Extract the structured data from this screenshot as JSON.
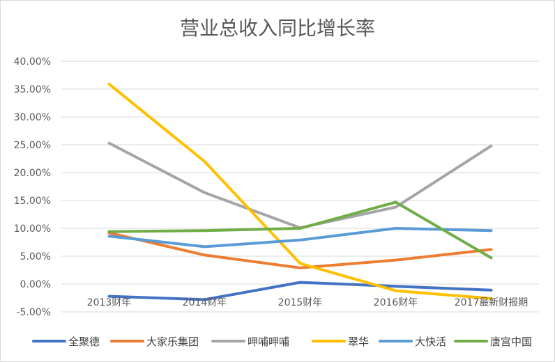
{
  "chart_data": {
    "type": "line",
    "title": "营业总收入同比增长率",
    "categories": [
      "2013财年",
      "2014财年",
      "2015财年",
      "2016财年",
      "2017最新财报期"
    ],
    "y_ticks": [
      "40.00%",
      "35.00%",
      "30.00%",
      "25.00%",
      "20.00%",
      "15.00%",
      "10.00%",
      "5.00%",
      "0.00%",
      "-5.00%"
    ],
    "ylim": [
      -5,
      40
    ],
    "unit": "%",
    "grid": true,
    "legend_position": "bottom",
    "series": [
      {
        "name": "全聚德",
        "color": "#4472C4",
        "values": [
          -2.2,
          -2.8,
          0.3,
          -0.4,
          -1.1
        ]
      },
      {
        "name": "大家乐集团",
        "color": "#ED7D31",
        "values": [
          9.2,
          5.2,
          2.9,
          4.3,
          6.2
        ]
      },
      {
        "name": "呷哺呷哺",
        "color": "#A5A5A5",
        "values": [
          25.3,
          16.4,
          10.1,
          13.8,
          24.8
        ]
      },
      {
        "name": "翠华",
        "color": "#FFC000",
        "values": [
          35.9,
          22.0,
          3.7,
          -1.2,
          -2.6
        ]
      },
      {
        "name": "大快活",
        "color": "#5B9BD5",
        "values": [
          8.6,
          6.7,
          7.9,
          10.0,
          9.6
        ]
      },
      {
        "name": "唐宫中国",
        "color": "#70AD47",
        "values": [
          9.4,
          9.6,
          10.0,
          14.7,
          4.7
        ]
      }
    ]
  }
}
